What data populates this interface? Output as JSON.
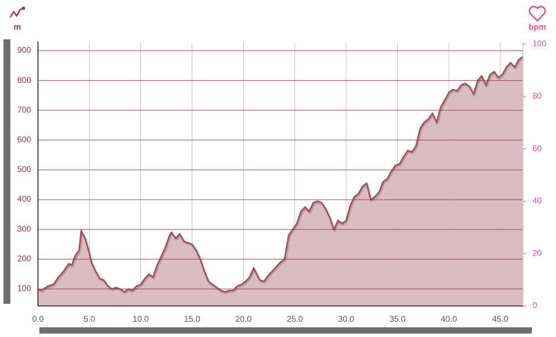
{
  "chart_data": {
    "type": "area",
    "y_unit": "m",
    "y2_unit": "bpm",
    "color": "#9b4a58",
    "fill": "#d9b8bf",
    "grid_color": "#8b3a4a",
    "xgrid_color": "#c8c8c8",
    "xlim": [
      0,
      47.2
    ],
    "ylim": [
      43,
      922
    ],
    "y2lim": [
      0,
      100
    ],
    "xticks": [
      {
        "value": 0,
        "label": "0.0"
      },
      {
        "value": 5,
        "label": "5.0"
      },
      {
        "value": 10,
        "label": "10.0"
      },
      {
        "value": 15,
        "label": "15.0"
      },
      {
        "value": 20,
        "label": "20.0"
      },
      {
        "value": 25,
        "label": "25.0"
      },
      {
        "value": 30,
        "label": "30.0"
      },
      {
        "value": 35,
        "label": "35.0"
      },
      {
        "value": 40,
        "label": "40.0"
      },
      {
        "value": 45,
        "label": "45.0"
      }
    ],
    "yticks": [
      100,
      200,
      300,
      400,
      500,
      600,
      700,
      800,
      900
    ],
    "y2ticks": [
      0,
      20,
      40,
      60,
      80,
      100
    ],
    "x": [
      0,
      0.3,
      1.0,
      1.5,
      2.0,
      2.5,
      3.0,
      3.3,
      3.6,
      4.0,
      4.2,
      4.6,
      5.0,
      5.2,
      5.6,
      6.0,
      6.4,
      6.8,
      7.2,
      7.6,
      8.0,
      8.4,
      8.8,
      9.2,
      9.6,
      10.0,
      10.4,
      10.8,
      11.2,
      11.6,
      12.0,
      12.4,
      12.8,
      13.0,
      13.4,
      13.8,
      14.2,
      14.6,
      15.0,
      15.4,
      15.8,
      16.2,
      16.6,
      17.0,
      17.4,
      17.8,
      18.2,
      18.6,
      19.0,
      19.4,
      19.8,
      20.2,
      20.6,
      21.0,
      21.3,
      21.6,
      22.0,
      22.4,
      22.8,
      23.2,
      23.6,
      24.0,
      24.4,
      24.8,
      25.2,
      25.6,
      26.0,
      26.4,
      26.8,
      27.2,
      27.6,
      28.0,
      28.4,
      28.8,
      29.2,
      29.6,
      30.0,
      30.4,
      30.8,
      31.2,
      31.6,
      32.0,
      32.4,
      32.8,
      33.2,
      33.6,
      34.0,
      34.4,
      34.8,
      35.2,
      35.6,
      36.0,
      36.4,
      36.8,
      37.2,
      37.6,
      38.0,
      38.4,
      38.8,
      39.2,
      39.6,
      40.0,
      40.4,
      40.8,
      41.2,
      41.6,
      42.0,
      42.4,
      42.8,
      43.2,
      43.6,
      44.0,
      44.4,
      44.8,
      45.2,
      45.6,
      46.0,
      46.4,
      46.8,
      47.2
    ],
    "values": [
      100,
      95,
      110,
      115,
      140,
      160,
      185,
      180,
      210,
      230,
      295,
      270,
      220,
      190,
      160,
      135,
      130,
      110,
      100,
      105,
      100,
      90,
      100,
      95,
      110,
      115,
      135,
      150,
      140,
      180,
      210,
      240,
      280,
      290,
      270,
      285,
      260,
      255,
      250,
      230,
      200,
      160,
      125,
      115,
      105,
      95,
      90,
      95,
      95,
      110,
      115,
      125,
      140,
      170,
      150,
      130,
      125,
      145,
      160,
      175,
      190,
      200,
      280,
      300,
      320,
      360,
      375,
      360,
      390,
      395,
      390,
      370,
      340,
      300,
      330,
      320,
      330,
      380,
      410,
      420,
      445,
      455,
      400,
      410,
      425,
      460,
      470,
      495,
      515,
      520,
      545,
      565,
      560,
      580,
      640,
      660,
      670,
      690,
      660,
      710,
      735,
      760,
      770,
      765,
      785,
      790,
      780,
      755,
      800,
      815,
      785,
      820,
      830,
      810,
      820,
      845,
      860,
      845,
      870,
      880
    ]
  }
}
